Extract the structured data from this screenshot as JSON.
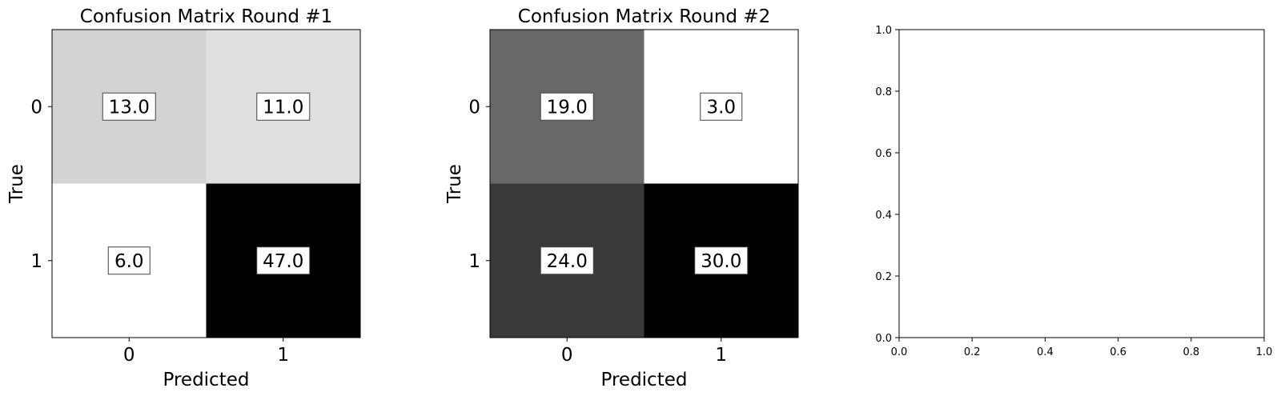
{
  "chart_data": [
    {
      "type": "heatmap",
      "title": "Confusion Matrix Round #1",
      "xlabel": "Predicted",
      "ylabel": "True",
      "x_categories": [
        "0",
        "1"
      ],
      "y_categories": [
        "0",
        "1"
      ],
      "values": [
        [
          13.0,
          11.0
        ],
        [
          6.0,
          47.0
        ]
      ],
      "value_labels": [
        [
          "13.0",
          "11.0"
        ],
        [
          "6.0",
          "47.0"
        ]
      ],
      "colormap": "gray_r"
    },
    {
      "type": "heatmap",
      "title": "Confusion Matrix Round #2",
      "xlabel": "Predicted",
      "ylabel": "True",
      "x_categories": [
        "0",
        "1"
      ],
      "y_categories": [
        "0",
        "1"
      ],
      "values": [
        [
          19.0,
          3.0
        ],
        [
          24.0,
          30.0
        ]
      ],
      "value_labels": [
        [
          "19.0",
          "3.0"
        ],
        [
          "24.0",
          "30.0"
        ]
      ],
      "colormap": "gray_r"
    },
    {
      "type": "scatter",
      "title": "",
      "xlabel": "",
      "ylabel": "",
      "xlim": [
        0.0,
        1.0
      ],
      "ylim": [
        0.0,
        1.0
      ],
      "x_ticks": [
        "0.0",
        "0.2",
        "0.4",
        "0.6",
        "0.8",
        "1.0"
      ],
      "y_ticks": [
        "0.0",
        "0.2",
        "0.4",
        "0.6",
        "0.8",
        "1.0"
      ],
      "series": []
    }
  ]
}
